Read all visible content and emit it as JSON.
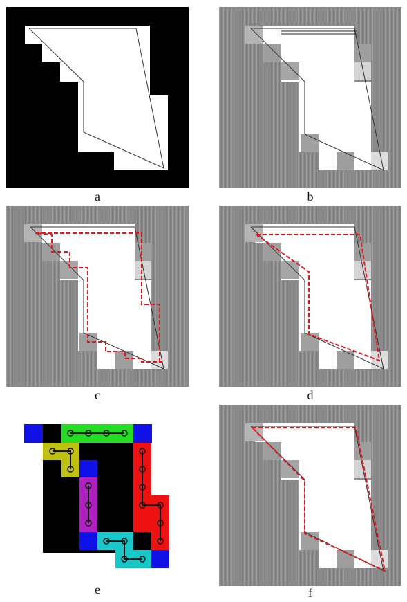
{
  "figure": {
    "panels": [
      {
        "id": "a",
        "label": "a",
        "kind": "binary-shape"
      },
      {
        "id": "b",
        "label": "b",
        "kind": "gray-overlay"
      },
      {
        "id": "c",
        "label": "c",
        "kind": "gray-overlay-red-staircase"
      },
      {
        "id": "d",
        "label": "d",
        "kind": "gray-overlay-red-simplified"
      },
      {
        "id": "e",
        "label": "e",
        "kind": "colored-segments"
      },
      {
        "id": "f",
        "label": "f",
        "kind": "gray-overlay-red-final"
      }
    ],
    "colors": {
      "black": "#000000",
      "white": "#ffffff",
      "gray_background": "#8a8a8a",
      "light_gray_cell": "#c8c8c8",
      "mid_gray_cell": "#a6a6a6",
      "red_dashed": "#e8141c",
      "green": "#22dd22",
      "blue": "#1010e8",
      "olive": "#c0c010",
      "magenta": "#b020c0",
      "red": "#ee1111",
      "cyan": "#18c8c8"
    }
  }
}
